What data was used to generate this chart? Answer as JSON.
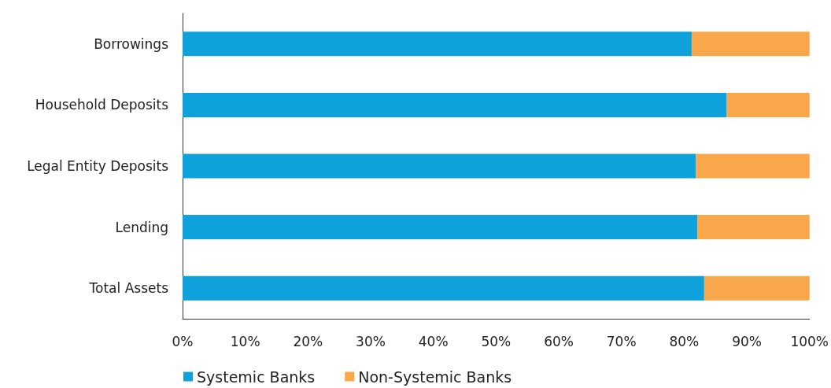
{
  "chart_data": {
    "type": "bar",
    "orientation": "horizontal",
    "stacked": true,
    "categories": [
      "Borrowings",
      "Household Deposits",
      "Legal Entity Deposits",
      "Lending",
      "Total Assets"
    ],
    "series": [
      {
        "name": "Systemic Banks",
        "color": "#0ea1dc",
        "values": [
          81.2,
          86.8,
          81.9,
          82.1,
          83.2
        ]
      },
      {
        "name": "Non-Systemic Banks",
        "color": "#f9a74b",
        "values": [
          18.8,
          13.2,
          18.1,
          17.9,
          16.8
        ]
      }
    ],
    "xlim": [
      0,
      100
    ],
    "xticks": [
      {
        "value": 0,
        "label": "0%"
      },
      {
        "value": 10,
        "label": "10%"
      },
      {
        "value": 20,
        "label": "20%"
      },
      {
        "value": 30,
        "label": "30%"
      },
      {
        "value": 40,
        "label": "40%"
      },
      {
        "value": 50,
        "label": "50%"
      },
      {
        "value": 60,
        "label": "60%"
      },
      {
        "value": 70,
        "label": "70%"
      },
      {
        "value": 80,
        "label": "80%"
      },
      {
        "value": 90,
        "label": "90%"
      },
      {
        "value": 100,
        "label": "100%"
      }
    ],
    "grid": false,
    "legend": "bottom left"
  }
}
